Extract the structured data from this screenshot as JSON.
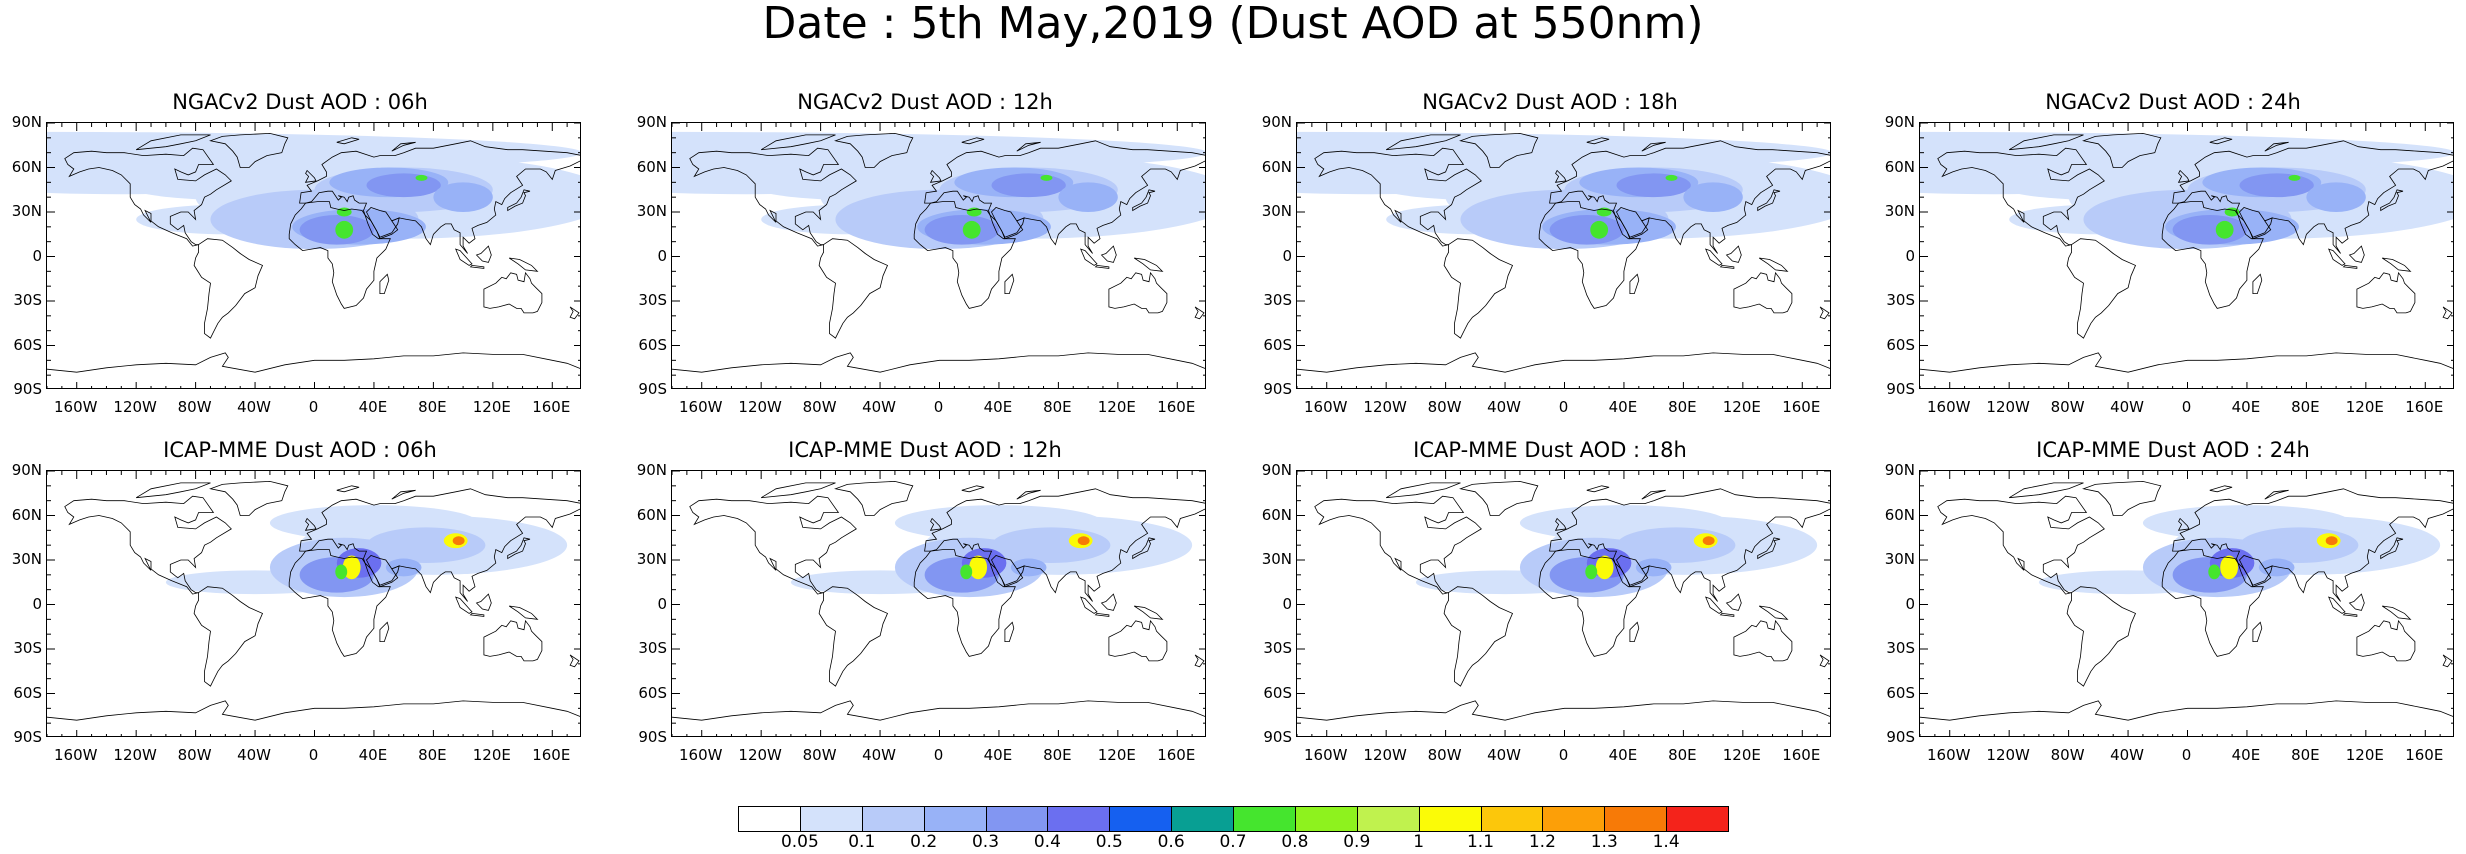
{
  "title": "Date : 5th May,2019 (Dust AOD at 550nm)",
  "lat_labels": [
    "90N",
    "60N",
    "30N",
    "0",
    "30S",
    "60S",
    "90S"
  ],
  "lon_labels": [
    "160W",
    "120W",
    "80W",
    "40W",
    "0",
    "40E",
    "80E",
    "120E",
    "160E"
  ],
  "lon_values": [
    -160,
    -120,
    -80,
    -40,
    0,
    40,
    80,
    120,
    160
  ],
  "lat_values": [
    90,
    60,
    30,
    0,
    -30,
    -60,
    -90
  ],
  "panels": [
    {
      "title": "NGACv2 Dust AOD : 06h",
      "model": "ngac",
      "hour": 6
    },
    {
      "title": "NGACv2 Dust AOD : 12h",
      "model": "ngac",
      "hour": 12
    },
    {
      "title": "NGACv2 Dust AOD : 18h",
      "model": "ngac",
      "hour": 18
    },
    {
      "title": "NGACv2 Dust AOD : 24h",
      "model": "ngac",
      "hour": 24
    },
    {
      "title": "ICAP-MME Dust AOD : 06h",
      "model": "icap",
      "hour": 6
    },
    {
      "title": "ICAP-MME Dust AOD : 12h",
      "model": "icap",
      "hour": 12
    },
    {
      "title": "ICAP-MME Dust AOD : 18h",
      "model": "icap",
      "hour": 18
    },
    {
      "title": "ICAP-MME Dust AOD : 24h",
      "model": "icap",
      "hour": 24
    }
  ],
  "colorbar": {
    "labels": [
      "0.05",
      "0.1",
      "0.2",
      "0.3",
      "0.4",
      "0.5",
      "0.6",
      "0.7",
      "0.8",
      "0.9",
      "1",
      "1.1",
      "1.2",
      "1.3",
      "1.4"
    ],
    "colors": [
      "#ffffff",
      "#d4e2fb",
      "#b8cbf9",
      "#98b2f7",
      "#8296f2",
      "#6b6ff0",
      "#1560f0",
      "#089f93",
      "#45e52e",
      "#8ef21e",
      "#c0f24e",
      "#fbfb07",
      "#fcc70b",
      "#fc9f08",
      "#f77a07",
      "#f4231b"
    ]
  },
  "map_colors": {
    "coast": "#000000",
    "ocean": "#ffffff"
  }
}
